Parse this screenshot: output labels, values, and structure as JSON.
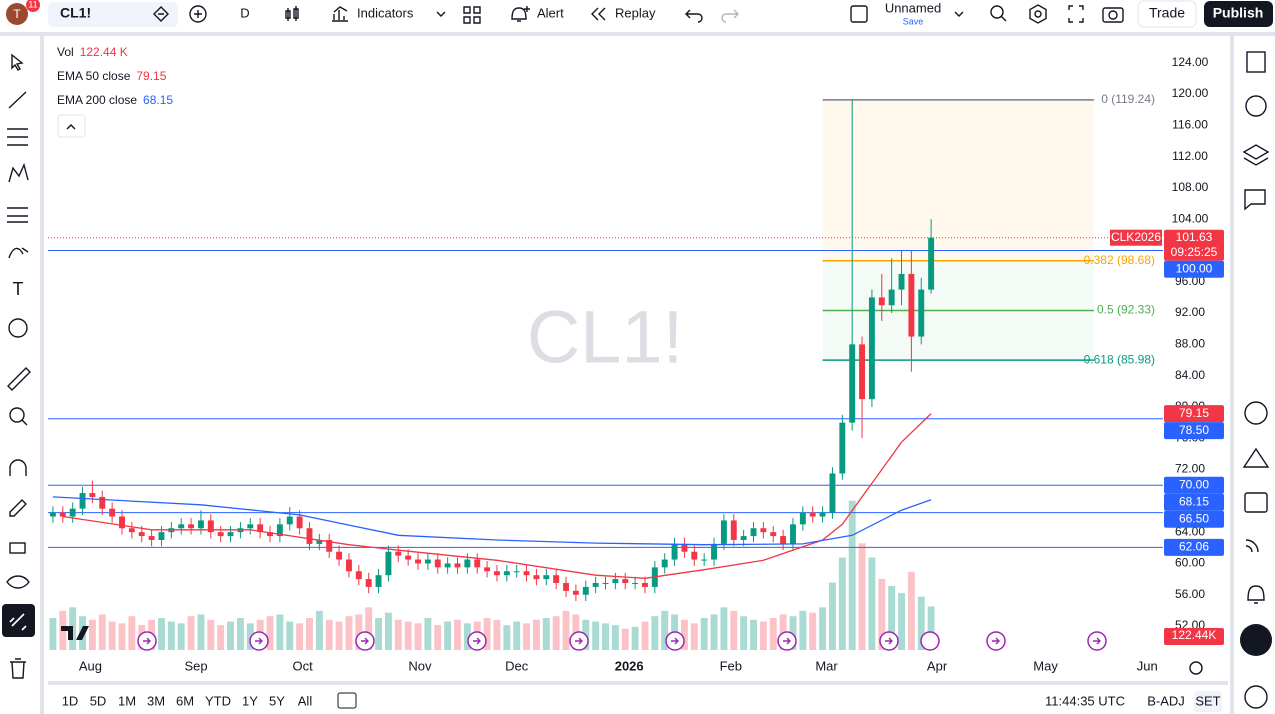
{
  "top_bar": {
    "avatar_badge": 11,
    "symbol": "CL1!",
    "interval": "D",
    "indicators": "Indicators",
    "alert": "Alert",
    "replay": "Replay",
    "layout_name": "Unnamed",
    "save": "Save",
    "trade": "Trade",
    "publish": "Publish"
  },
  "legend": {
    "vol_label": "Vol",
    "vol_value": "122.44 K"
  },
  "chart_data": {
    "type": "candlestick",
    "watermark": "CL1!",
    "ylim": [
      48.3,
      126.9
    ],
    "yticks": [
      {
        "value": 124,
        "label": "124.00"
      },
      {
        "value": 120,
        "label": "120.00"
      },
      {
        "value": 116,
        "label": "116.00"
      },
      {
        "value": 112,
        "label": "112.00"
      },
      {
        "value": 108,
        "label": "108.00"
      },
      {
        "value": 104,
        "label": "104.00"
      },
      {
        "value": 100,
        "label": "100.00"
      },
      {
        "value": 96,
        "label": "96.00"
      },
      {
        "value": 92,
        "label": "92.00"
      },
      {
        "value": 88,
        "label": "88.00"
      },
      {
        "value": 84,
        "label": "84.00"
      },
      {
        "value": 80,
        "label": "80.00"
      },
      {
        "value": 76,
        "label": "76.00"
      },
      {
        "value": 72,
        "label": "72.00"
      },
      {
        "value": 68,
        "label": "68.00"
      },
      {
        "value": 64,
        "label": "64.00"
      },
      {
        "value": 60,
        "label": "60.00"
      },
      {
        "value": 56,
        "label": "56.00"
      },
      {
        "value": 52,
        "label": "52.00"
      }
    ],
    "xlim": [
      -0.5,
      112.5
    ],
    "xticks": [
      {
        "value": 3.8,
        "label": "Aug"
      },
      {
        "value": 14.5,
        "label": "Sep"
      },
      {
        "value": 25.3,
        "label": "Oct"
      },
      {
        "value": 37.2,
        "label": "Nov"
      },
      {
        "value": 47,
        "label": "Dec"
      },
      {
        "value": 58.4,
        "label": "2026"
      },
      {
        "value": 68.7,
        "label": "Feb"
      },
      {
        "value": 78.4,
        "label": "Mar"
      },
      {
        "value": 89.6,
        "label": "Apr"
      },
      {
        "value": 100.6,
        "label": "May"
      },
      {
        "value": 110.9,
        "label": "Jun"
      }
    ],
    "up_color": "#089981",
    "down_color": "#f23645",
    "open": [
      66,
      66.5,
      66,
      67,
      69,
      68.5,
      67,
      66,
      64.5,
      64,
      63.5,
      63,
      64,
      64.5,
      65,
      64.5,
      65.5,
      64,
      63.5,
      64,
      64.5,
      65,
      64,
      63.5,
      65,
      66,
      64.5,
      62.5,
      63,
      61.5,
      60.5,
      59,
      58,
      57,
      58.5,
      61.5,
      61,
      60.5,
      60,
      60.5,
      59.5,
      60,
      59.5,
      60.5,
      59.5,
      59,
      58.5,
      59,
      59,
      58.5,
      58,
      58.5,
      57.5,
      56.5,
      56,
      57,
      57.5,
      57.5,
      58,
      57.5,
      57.5,
      57,
      59.5,
      60.5,
      62.5,
      61.5,
      60.5,
      60.5,
      62.5,
      65.5,
      63,
      63.5,
      64.5,
      64,
      63.5,
      62.5,
      65,
      66.5,
      66,
      66.5,
      71.5,
      78,
      88,
      81,
      94,
      93,
      95,
      97,
      89,
      95
    ],
    "high": [
      67.3,
      67.3,
      67.8,
      69.8,
      70.6,
      69.3,
      67.8,
      66.8,
      65.3,
      64.8,
      64.3,
      64.8,
      65.3,
      65.8,
      65.8,
      66.8,
      66.3,
      64.8,
      64.8,
      65.3,
      65.8,
      65.8,
      64.8,
      65.8,
      67.2,
      66.8,
      65.3,
      63.8,
      63.8,
      62.3,
      61.3,
      59.8,
      58.8,
      59.3,
      62.3,
      62.3,
      61.8,
      61.3,
      61.3,
      61.3,
      60.8,
      60.8,
      61.3,
      61.3,
      60.3,
      59.8,
      59.8,
      59.8,
      59.8,
      59.3,
      59.3,
      59.3,
      58.3,
      57.3,
      57.8,
      58.3,
      58.3,
      58.8,
      58.8,
      58.3,
      58.3,
      60.3,
      61.3,
      63.3,
      63.3,
      62.3,
      61.3,
      63.3,
      66.3,
      66.3,
      64.3,
      65.3,
      65.3,
      64.8,
      64.3,
      65.8,
      67.3,
      67.3,
      67.3,
      72.3,
      79,
      119.24,
      89,
      95,
      97,
      99,
      100,
      100,
      96.5,
      104
    ],
    "low": [
      65.2,
      65.2,
      65.2,
      66.2,
      67.7,
      66.2,
      65.2,
      63.7,
      63.2,
      62.7,
      62.2,
      62.2,
      63.2,
      63.7,
      63.7,
      63.7,
      63.2,
      62.7,
      62.7,
      63.2,
      63.7,
      63.2,
      62.7,
      62.7,
      64.2,
      63.7,
      61.7,
      61.7,
      60.7,
      59.7,
      58.2,
      57.2,
      56.2,
      56.2,
      57.7,
      60.2,
      59.7,
      59.2,
      59.2,
      58.7,
      58.7,
      58.7,
      58.7,
      58.7,
      58.2,
      57.7,
      57.7,
      58.2,
      57.7,
      57.2,
      57.2,
      56.7,
      55.7,
      55.2,
      55.2,
      56.2,
      56.7,
      56.7,
      56.7,
      56.7,
      56.2,
      56.2,
      58.7,
      59.7,
      60.7,
      59.7,
      59.7,
      59.7,
      61.7,
      62.2,
      62.2,
      62.7,
      63.2,
      62.7,
      61.7,
      61.7,
      64.2,
      65.2,
      65.2,
      65.7,
      70.7,
      77,
      76,
      80,
      91,
      92,
      93,
      84.5,
      88,
      94.5
    ],
    "close": [
      66.5,
      66,
      67,
      69,
      68.5,
      67,
      66,
      64.5,
      64,
      63.5,
      63,
      64,
      64.5,
      65,
      64.5,
      65.5,
      64,
      63.5,
      64,
      64.5,
      65,
      64,
      63.5,
      65,
      66,
      64.5,
      62.5,
      63,
      61.5,
      60.5,
      59,
      58,
      57,
      58.5,
      61.5,
      61,
      60.5,
      60,
      60.5,
      59.5,
      60,
      59.5,
      60.5,
      59.5,
      59,
      58.5,
      59,
      59,
      58.5,
      58,
      58.5,
      57.5,
      56.5,
      56,
      57,
      57.5,
      57.5,
      58,
      57.5,
      57.5,
      57,
      59.5,
      60.5,
      62.5,
      61.5,
      60.5,
      60.5,
      62.5,
      65.5,
      63,
      63.5,
      64.5,
      64,
      63.5,
      62.5,
      65,
      66.5,
      66,
      66.5,
      71.5,
      78,
      88,
      81,
      94,
      93,
      95,
      97,
      89,
      95,
      101.63
    ],
    "volume": [
      90,
      110,
      120,
      95,
      85,
      100,
      80,
      75,
      95,
      70,
      85,
      90,
      80,
      75,
      95,
      100,
      85,
      70,
      80,
      90,
      75,
      85,
      95,
      100,
      80,
      75,
      90,
      110,
      85,
      80,
      95,
      100,
      120,
      90,
      105,
      85,
      80,
      75,
      90,
      70,
      80,
      85,
      75,
      80,
      90,
      85,
      70,
      80,
      75,
      85,
      90,
      95,
      110,
      100,
      85,
      80,
      75,
      70,
      60,
      65,
      80,
      95,
      110,
      100,
      85,
      75,
      90,
      100,
      120,
      110,
      95,
      85,
      80,
      90,
      100,
      95,
      110,
      105,
      120,
      190,
      260,
      420,
      300,
      260,
      200,
      180,
      160,
      220,
      150,
      122.44
    ],
    "volume_lim": [
      0,
      450
    ],
    "volume_up_color": "rgba(8,153,129,0.35)",
    "volume_down_color": "rgba(242,54,69,0.3)",
    "volume_tag": "122.44K",
    "series": [
      {
        "name": "EMA 50 close",
        "color": "#f23645",
        "x": [
          1,
          10,
          20,
          30,
          35,
          45,
          55,
          60,
          66,
          72,
          78,
          80,
          82,
          84,
          86,
          89
        ],
        "values": [
          66,
          64.3,
          64.3,
          62.4,
          61.7,
          60.4,
          58.5,
          58.1,
          59.2,
          60.4,
          63,
          65,
          68.5,
          72,
          75.5,
          79.15
        ]
      },
      {
        "name": "EMA 200 close",
        "color": "#2962ff",
        "x": [
          0,
          15,
          25,
          35,
          45,
          55,
          66,
          76,
          81,
          86,
          89
        ],
        "values": [
          68.5,
          67.5,
          66.2,
          63.6,
          63,
          62.6,
          62.4,
          62.5,
          63.6,
          66.8,
          68.15
        ]
      }
    ],
    "price_line": {
      "symbol": "CLK2026",
      "value": 101.63,
      "label": "101.63",
      "countdown": "09:25:25",
      "color": "#f23645"
    },
    "levels": [
      {
        "value": 100,
        "label": "100.00",
        "color": "#2962ff"
      },
      {
        "value": 78.5,
        "label": "78.50",
        "color": "#2962ff"
      },
      {
        "value": 70,
        "label": "70.00",
        "color": "#2962ff"
      },
      {
        "value": 66.5,
        "label": "66.50",
        "color": "#2962ff"
      },
      {
        "value": 62.06,
        "label": "62.06",
        "color": "#2962ff"
      }
    ],
    "fib": {
      "start": 78,
      "end": 105.5,
      "levels": [
        {
          "value": 119.24,
          "label": "0 (119.24)",
          "color": "#787b86"
        },
        {
          "value": 98.68,
          "label": "0.382 (98.68)",
          "color": "#f7a600"
        },
        {
          "value": 92.33,
          "label": "0.5 (92.33)",
          "color": "#4caf50"
        },
        {
          "value": 85.98,
          "label": "0.618 (85.98)",
          "color": "#089981"
        }
      ]
    }
  },
  "bottom_bar": {
    "ranges": [
      "1D",
      "5D",
      "1M",
      "3M",
      "6M",
      "YTD",
      "1Y",
      "5Y",
      "All"
    ],
    "clock": "11:44:35 UTC",
    "adjust": "B-ADJ",
    "session": "SET"
  }
}
